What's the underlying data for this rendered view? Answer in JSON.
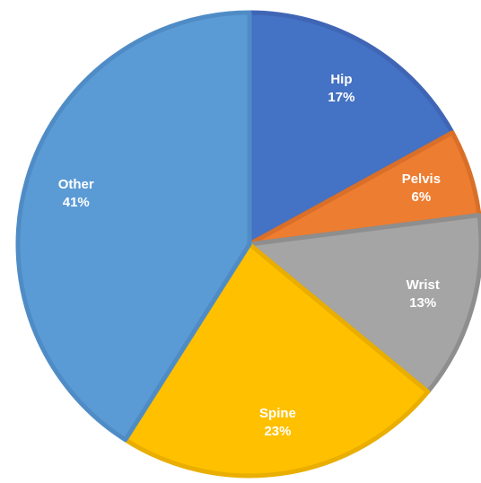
{
  "chart_data": {
    "type": "pie",
    "title": "",
    "start_angle_deg": 0,
    "direction": "clockwise",
    "slices": [
      {
        "label": "Hip",
        "value": 17,
        "percent_label": "17%",
        "color": "#4472C4",
        "border": "#3F65B5"
      },
      {
        "label": "Pelvis",
        "value": 6,
        "percent_label": "6%",
        "color": "#ED7D31",
        "border": "#D96F28"
      },
      {
        "label": "Wrist",
        "value": 13,
        "percent_label": "13%",
        "color": "#A5A5A5",
        "border": "#8E8E8E"
      },
      {
        "label": "Spine",
        "value": 23,
        "percent_label": "23%",
        "color": "#FFC000",
        "border": "#E9AE00"
      },
      {
        "label": "Other",
        "value": 41,
        "percent_label": "41%",
        "color": "#5B9BD5",
        "border": "#4F8CC6"
      }
    ]
  }
}
